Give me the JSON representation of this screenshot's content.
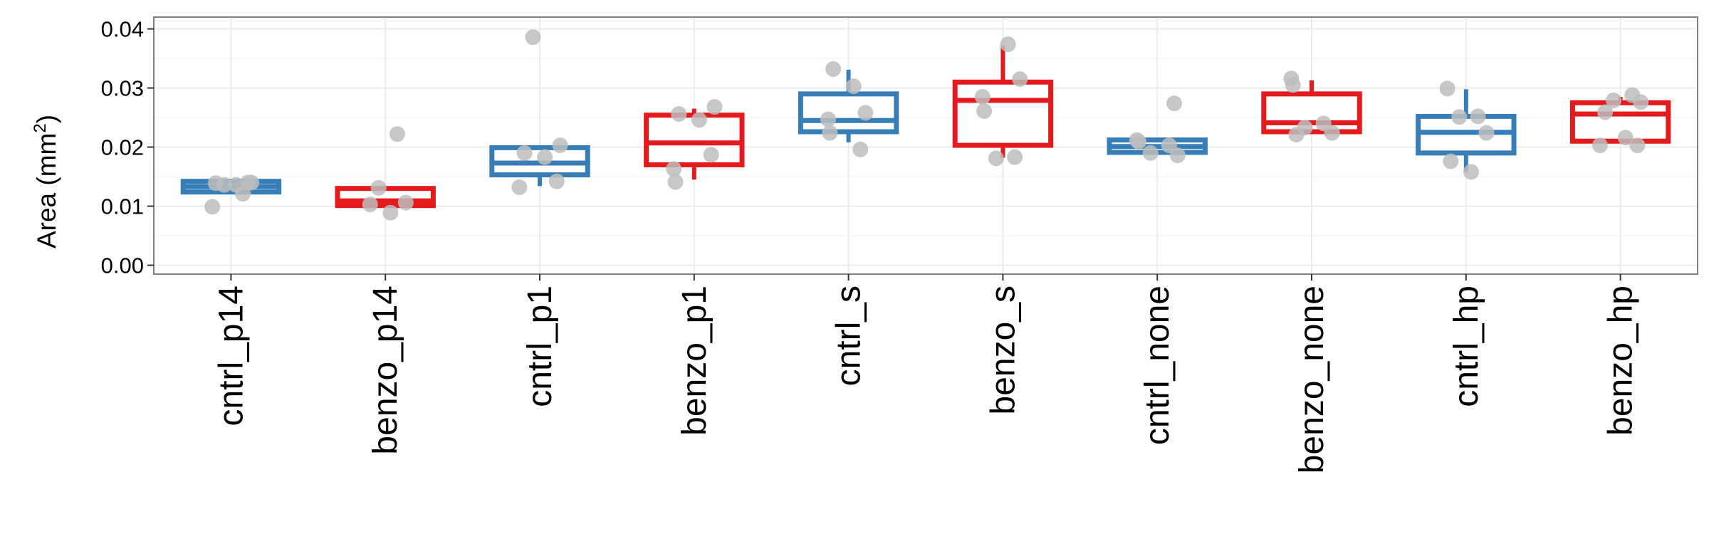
{
  "chart_data": {
    "type": "box",
    "title": "",
    "xlabel": "",
    "ylabel": "Area (mm",
    "ylabel_superscript": "2",
    "ylabel_close": ")",
    "ylim": [
      -0.0015,
      0.042
    ],
    "yticks": [
      0.0,
      0.01,
      0.02,
      0.03,
      0.04
    ],
    "ytick_labels": [
      "0.00",
      "0.01",
      "0.02",
      "0.03",
      "0.04"
    ],
    "grid": true,
    "colors": {
      "cntrl": "#377EB8",
      "benzo": "#E41A1C",
      "point": "#BDBDBD",
      "panel_border": "#7F7F7F",
      "grid_major": "#EBEBEB",
      "grid_minor": "#F5F5F5"
    },
    "categories": [
      "cntrl_p14",
      "benzo_p14",
      "cntrl_p1",
      "benzo_p1",
      "cntrl_s",
      "benzo_s",
      "cntrl_none",
      "benzo_none",
      "cntrl_hp",
      "benzo_hp"
    ],
    "boxes": [
      {
        "category": "cntrl_p14",
        "group": "cntrl",
        "min": 0.0122,
        "q1": 0.0124,
        "median": 0.0133,
        "q3": 0.0142,
        "max": 0.0145,
        "points": [
          0.0099,
          0.0121,
          0.0136,
          0.014,
          0.0139,
          0.0136,
          0.014
        ]
      },
      {
        "category": "benzo_p14",
        "group": "benzo",
        "min": 0.0098,
        "q1": 0.0101,
        "median": 0.0109,
        "q3": 0.013,
        "max": 0.013,
        "points": [
          0.0222,
          0.0131,
          0.0106,
          0.0103,
          0.0089
        ]
      },
      {
        "category": "cntrl_p1",
        "group": "cntrl",
        "min": 0.0134,
        "q1": 0.0153,
        "median": 0.0173,
        "q3": 0.0199,
        "max": 0.0199,
        "points": [
          0.0386,
          0.0203,
          0.019,
          0.0183,
          0.0142,
          0.0132
        ]
      },
      {
        "category": "benzo_p1",
        "group": "benzo",
        "min": 0.0145,
        "q1": 0.017,
        "median": 0.0207,
        "q3": 0.0254,
        "max": 0.0265,
        "points": [
          0.0268,
          0.0256,
          0.0246,
          0.0187,
          0.0163,
          0.0141
        ]
      },
      {
        "category": "cntrl_s",
        "group": "cntrl",
        "min": 0.0208,
        "q1": 0.0226,
        "median": 0.0245,
        "q3": 0.029,
        "max": 0.0331,
        "points": [
          0.0332,
          0.0303,
          0.0258,
          0.0247,
          0.0224,
          0.0196
        ]
      },
      {
        "category": "benzo_s",
        "group": "benzo",
        "min": 0.0182,
        "q1": 0.0203,
        "median": 0.0279,
        "q3": 0.031,
        "max": 0.0372,
        "points": [
          0.0374,
          0.0315,
          0.0285,
          0.0261,
          0.0183,
          0.0181
        ]
      },
      {
        "category": "cntrl_none",
        "group": "cntrl",
        "min": 0.019,
        "q1": 0.0191,
        "median": 0.0201,
        "q3": 0.0212,
        "max": 0.0212,
        "points": [
          0.0274,
          0.0212,
          0.0209,
          0.0203,
          0.019,
          0.0186
        ]
      },
      {
        "category": "benzo_none",
        "group": "benzo",
        "min": 0.0224,
        "q1": 0.0226,
        "median": 0.0241,
        "q3": 0.029,
        "max": 0.0313,
        "points": [
          0.0316,
          0.0305,
          0.024,
          0.0233,
          0.0224,
          0.0221
        ]
      },
      {
        "category": "cntrl_hp",
        "group": "cntrl",
        "min": 0.0158,
        "q1": 0.019,
        "median": 0.0225,
        "q3": 0.0252,
        "max": 0.0298,
        "points": [
          0.0299,
          0.0252,
          0.0251,
          0.0224,
          0.0176,
          0.0158
        ]
      },
      {
        "category": "benzo_hp",
        "group": "benzo",
        "min": 0.021,
        "q1": 0.021,
        "median": 0.0256,
        "q3": 0.0275,
        "max": 0.0285,
        "points": [
          0.0288,
          0.0279,
          0.0276,
          0.0259,
          0.0216,
          0.0203,
          0.0203
        ]
      }
    ]
  }
}
